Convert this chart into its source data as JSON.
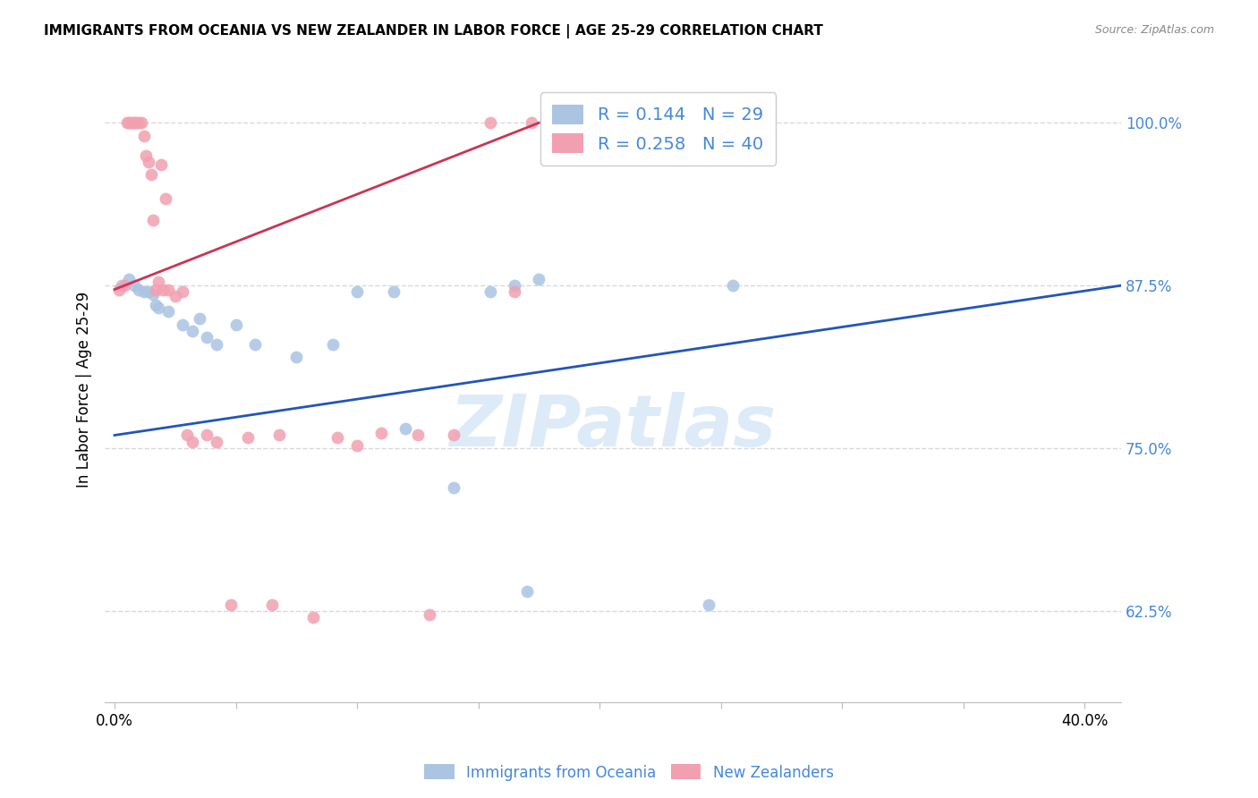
{
  "title": "IMMIGRANTS FROM OCEANIA VS NEW ZEALANDER IN LABOR FORCE | AGE 25-29 CORRELATION CHART",
  "source": "Source: ZipAtlas.com",
  "ylabel": "In Labor Force | Age 25-29",
  "xlim": [
    -0.004,
    0.415
  ],
  "ylim": [
    0.555,
    1.035
  ],
  "blue_color": "#aac4e2",
  "pink_color": "#f2a0b0",
  "blue_line_color": "#2255bb",
  "pink_line_color": "#cc3355",
  "R_blue": 0.144,
  "N_blue": 29,
  "R_pink": 0.258,
  "N_pink": 40,
  "legend_label_blue": "Immigrants from Oceania",
  "legend_label_pink": "New Zealanders",
  "watermark": "ZIPatlas",
  "blue_scatter_x": [
    0.003,
    0.006,
    0.008,
    0.01,
    0.012,
    0.014,
    0.016,
    0.017,
    0.018,
    0.022,
    0.028,
    0.032,
    0.035,
    0.038,
    0.042,
    0.05,
    0.058,
    0.075,
    0.09,
    0.1,
    0.115,
    0.12,
    0.14,
    0.155,
    0.165,
    0.17,
    0.175,
    0.245,
    0.255
  ],
  "blue_scatter_y": [
    0.875,
    0.88,
    0.875,
    0.872,
    0.87,
    0.87,
    0.868,
    0.86,
    0.858,
    0.855,
    0.845,
    0.84,
    0.85,
    0.835,
    0.83,
    0.845,
    0.83,
    0.82,
    0.83,
    0.87,
    0.87,
    0.765,
    0.72,
    0.87,
    0.875,
    0.64,
    0.88,
    0.63,
    0.875
  ],
  "pink_scatter_x": [
    0.002,
    0.004,
    0.005,
    0.006,
    0.007,
    0.008,
    0.009,
    0.01,
    0.011,
    0.012,
    0.013,
    0.014,
    0.015,
    0.016,
    0.017,
    0.018,
    0.019,
    0.02,
    0.021,
    0.022,
    0.025,
    0.028,
    0.03,
    0.032,
    0.038,
    0.042,
    0.048,
    0.055,
    0.065,
    0.068,
    0.082,
    0.092,
    0.1,
    0.11,
    0.125,
    0.13,
    0.14,
    0.155,
    0.165,
    0.172
  ],
  "pink_scatter_y": [
    0.872,
    0.875,
    1.0,
    1.0,
    1.0,
    1.0,
    1.0,
    1.0,
    1.0,
    0.99,
    0.975,
    0.97,
    0.96,
    0.925,
    0.872,
    0.878,
    0.968,
    0.872,
    0.942,
    0.872,
    0.867,
    0.87,
    0.76,
    0.755,
    0.76,
    0.755,
    0.63,
    0.758,
    0.63,
    0.76,
    0.62,
    0.758,
    0.752,
    0.762,
    0.76,
    0.622,
    0.76,
    1.0,
    0.87,
    1.0
  ],
  "blue_trend_x": [
    0.0,
    0.415
  ],
  "blue_trend_y": [
    0.76,
    0.875
  ],
  "pink_trend_x": [
    0.0,
    0.175
  ],
  "pink_trend_y": [
    0.872,
    1.0
  ],
  "grid_color": "#d8d8d8",
  "right_axis_color": "#4488dd",
  "right_y_ticks": [
    0.625,
    0.75,
    0.875,
    1.0
  ],
  "right_y_tick_labels": [
    "62.5%",
    "75.0%",
    "87.5%",
    "100.0%"
  ],
  "x_tick_positions": [
    0.0,
    0.05,
    0.1,
    0.15,
    0.2,
    0.25,
    0.3,
    0.35,
    0.4
  ],
  "x_tick_labels": [
    "0.0%",
    "",
    "",
    "",
    "",
    "",
    "",
    "",
    "40.0%"
  ]
}
